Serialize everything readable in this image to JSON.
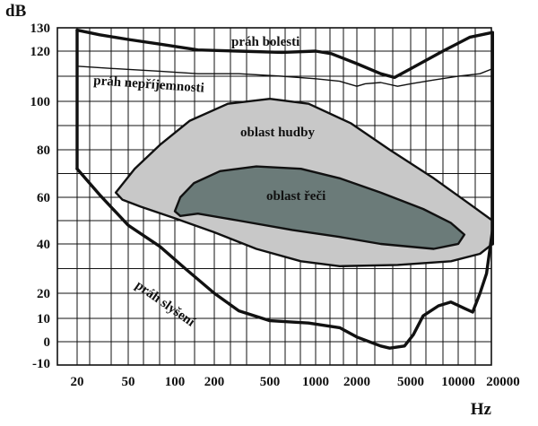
{
  "chart_data": {
    "type": "area",
    "title": "",
    "xlabel": "Hz",
    "ylabel": "dB",
    "x_scale": "log",
    "ylim": [
      -10,
      130
    ],
    "grid": true,
    "x_ticks": [
      "20",
      "50",
      "100",
      "200",
      "500",
      "1000",
      "2000",
      "5000",
      "10000",
      "20000"
    ],
    "y_ticks": [
      "130",
      "120",
      "100",
      "80",
      "60",
      "40",
      "20",
      "10",
      "0",
      "-10"
    ],
    "colors": {
      "line": "#111111",
      "grid": "#111111",
      "music_fill": "#c8c8c8",
      "speech_fill": "#6b7b79",
      "background": "#ffffff"
    },
    "annotations": {
      "pain": "práh bolesti",
      "discomfort": "práh nepříjemnosti",
      "music": "oblast hudby",
      "speech": "oblast řeči",
      "hearing": "práh slyšení"
    },
    "series": [
      {
        "name": "práh bolesti",
        "points": [
          [
            20,
            129
          ],
          [
            30,
            127
          ],
          [
            50,
            125
          ],
          [
            80,
            123
          ],
          [
            150,
            120.5
          ],
          [
            300,
            120
          ],
          [
            600,
            119.5
          ],
          [
            1000,
            120
          ],
          [
            1300,
            119
          ],
          [
            2000,
            115
          ],
          [
            3000,
            111
          ],
          [
            3800,
            109.5
          ],
          [
            5000,
            113
          ],
          [
            8000,
            120
          ],
          [
            12000,
            126
          ],
          [
            17000,
            128
          ]
        ]
      },
      {
        "name": "práh nepříjemnosti",
        "points": [
          [
            20,
            114
          ],
          [
            40,
            113
          ],
          [
            80,
            112
          ],
          [
            150,
            111
          ],
          [
            300,
            111
          ],
          [
            600,
            110
          ],
          [
            1000,
            109
          ],
          [
            1500,
            108
          ],
          [
            2000,
            106
          ],
          [
            2300,
            107
          ],
          [
            3000,
            107.5
          ],
          [
            4000,
            106
          ],
          [
            5000,
            107
          ],
          [
            7000,
            108.5
          ],
          [
            10000,
            110
          ],
          [
            14000,
            111
          ],
          [
            17000,
            113
          ]
        ]
      },
      {
        "name": "oblast hudby",
        "closed": true,
        "points": [
          [
            40,
            62
          ],
          [
            55,
            72
          ],
          [
            80,
            82
          ],
          [
            130,
            92
          ],
          [
            250,
            99
          ],
          [
            500,
            101
          ],
          [
            900,
            99
          ],
          [
            1800,
            91
          ],
          [
            3500,
            80
          ],
          [
            7000,
            68
          ],
          [
            12000,
            57
          ],
          [
            17000,
            50
          ],
          [
            17000,
            40
          ],
          [
            14000,
            36
          ],
          [
            9000,
            33
          ],
          [
            4000,
            31.5
          ],
          [
            1500,
            31
          ],
          [
            800,
            33
          ],
          [
            400,
            38
          ],
          [
            200,
            45
          ],
          [
            100,
            51
          ],
          [
            60,
            56
          ],
          [
            45,
            59
          ]
        ]
      },
      {
        "name": "oblast řeči",
        "closed": true,
        "points": [
          [
            100,
            54
          ],
          [
            110,
            60
          ],
          [
            140,
            66
          ],
          [
            220,
            71
          ],
          [
            400,
            73
          ],
          [
            800,
            72
          ],
          [
            1500,
            68
          ],
          [
            3000,
            62
          ],
          [
            6000,
            55
          ],
          [
            9000,
            49
          ],
          [
            11000,
            44
          ],
          [
            10000,
            40
          ],
          [
            7000,
            38
          ],
          [
            3000,
            40
          ],
          [
            1500,
            43
          ],
          [
            700,
            46
          ],
          [
            300,
            50
          ],
          [
            150,
            53
          ],
          [
            110,
            52
          ]
        ]
      },
      {
        "name": "práh slyšení",
        "points": [
          [
            20,
            72
          ],
          [
            30,
            61
          ],
          [
            50,
            48
          ],
          [
            80,
            39
          ],
          [
            120,
            30
          ],
          [
            200,
            20
          ],
          [
            300,
            13
          ],
          [
            500,
            9
          ],
          [
            900,
            8
          ],
          [
            1500,
            6
          ],
          [
            2000,
            2
          ],
          [
            3000,
            -2
          ],
          [
            3500,
            -3
          ],
          [
            4500,
            -2
          ],
          [
            5200,
            3
          ],
          [
            6000,
            11
          ],
          [
            7500,
            15
          ],
          [
            9000,
            16.5
          ],
          [
            11000,
            14
          ],
          [
            12500,
            12.5
          ],
          [
            14000,
            20
          ],
          [
            15500,
            28
          ],
          [
            17000,
            46
          ]
        ]
      },
      {
        "name": "",
        "points": [
          [
            20,
            72
          ],
          [
            20,
            129
          ]
        ]
      },
      {
        "name": "",
        "points": [
          [
            17000,
            40
          ],
          [
            17000,
            128
          ]
        ]
      }
    ]
  }
}
